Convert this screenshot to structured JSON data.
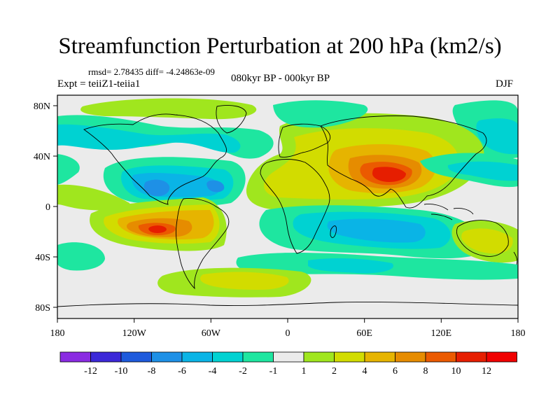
{
  "title": "Streamfunction Perturbation at 200 hPa (km2/s)",
  "stats": "rmsd= 2.78435 diff= -4.24863e-09",
  "experiment": "Expt = teiiZ1-teiia1",
  "period": "080kyr BP - 000kyr BP",
  "season": "DJF",
  "axes": {
    "lon_labels": [
      "180",
      "120W",
      "60W",
      "0",
      "60E",
      "120E",
      "180"
    ],
    "lat_labels": [
      "80N",
      "40N",
      "0",
      "40S",
      "80S"
    ]
  },
  "colorbar": {
    "labels": [
      "-12",
      "-10",
      "-8",
      "-6",
      "-4",
      "-2",
      "-1",
      "1",
      "2",
      "4",
      "6",
      "8",
      "10",
      "12"
    ],
    "colors": [
      "#8a2be2",
      "#3c28d8",
      "#1e5adc",
      "#1e90e6",
      "#0ab4e6",
      "#00d2d2",
      "#1ee6a0",
      "#ebebeb",
      "#a0e61e",
      "#d2dc00",
      "#e6b400",
      "#e68c00",
      "#eb5a00",
      "#e61e00",
      "#f00000"
    ]
  },
  "field_colors": {
    "neutral": "#ebebeb",
    "neg1": "#1ee6a0",
    "neg2": "#00d2d2",
    "neg4": "#0ab4e6",
    "neg6": "#1e90e6",
    "pos1": "#a0e61e",
    "pos2": "#d2dc00",
    "pos4": "#e6b400",
    "pos6": "#e68c00",
    "pos8": "#eb5a00",
    "pos10": "#e61e00"
  }
}
